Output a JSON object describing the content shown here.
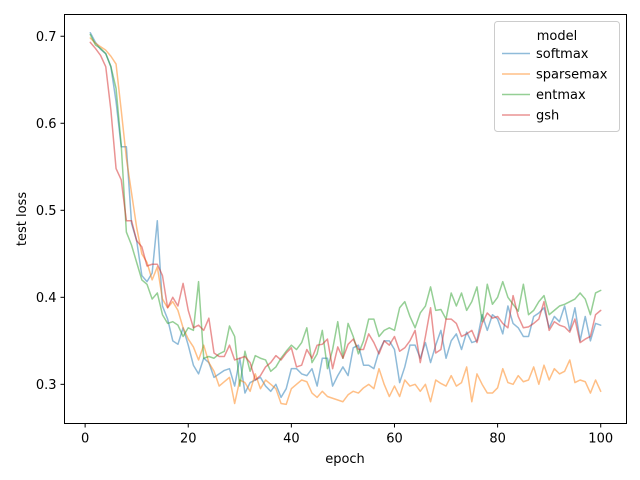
{
  "chart_data": {
    "type": "line",
    "xlabel": "epoch",
    "ylabel": "test loss",
    "xlim": [
      -4,
      105
    ],
    "ylim": [
      0.255,
      0.725
    ],
    "xticks": [
      0,
      20,
      40,
      60,
      80,
      100
    ],
    "yticks": [
      0.3,
      0.4,
      0.5,
      0.6,
      0.7
    ],
    "x_tick_labels": [
      "0",
      "20",
      "40",
      "60",
      "80",
      "100"
    ],
    "y_tick_labels": [
      "0.3",
      "0.4",
      "0.5",
      "0.6",
      "0.7"
    ],
    "grid": false,
    "legend": {
      "title": "model",
      "placement": "top-right"
    },
    "series": [
      {
        "name": "softmax",
        "color": "#1f77b4",
        "x": [
          1,
          2,
          3,
          4,
          5,
          6,
          7,
          8,
          9,
          10,
          11,
          12,
          13,
          14,
          15,
          16,
          17,
          18,
          19,
          20,
          21,
          22,
          23,
          24,
          25,
          26,
          27,
          28,
          29,
          30,
          31,
          32,
          33,
          34,
          35,
          36,
          37,
          38,
          39,
          40,
          41,
          42,
          43,
          44,
          45,
          46,
          47,
          48,
          49,
          50,
          51,
          52,
          53,
          54,
          55,
          56,
          57,
          58,
          59,
          60,
          61,
          62,
          63,
          64,
          65,
          66,
          67,
          68,
          69,
          70,
          71,
          72,
          73,
          74,
          75,
          76,
          77,
          78,
          79,
          80,
          81,
          82,
          83,
          84,
          85,
          86,
          87,
          88,
          89,
          90,
          91,
          92,
          93,
          94,
          95,
          96,
          97,
          98,
          99,
          100
        ],
        "values": [
          0.704,
          0.693,
          0.685,
          0.68,
          0.665,
          0.625,
          0.573,
          0.573,
          0.485,
          0.465,
          0.425,
          0.418,
          0.428,
          0.488,
          0.39,
          0.375,
          0.35,
          0.346,
          0.365,
          0.345,
          0.322,
          0.312,
          0.33,
          0.325,
          0.308,
          0.312,
          0.316,
          0.318,
          0.298,
          0.33,
          0.29,
          0.302,
          0.305,
          0.308,
          0.298,
          0.292,
          0.3,
          0.285,
          0.295,
          0.318,
          0.318,
          0.312,
          0.31,
          0.318,
          0.298,
          0.33,
          0.33,
          0.298,
          0.31,
          0.32,
          0.31,
          0.342,
          0.345,
          0.322,
          0.322,
          0.318,
          0.338,
          0.35,
          0.35,
          0.34,
          0.302,
          0.32,
          0.345,
          0.345,
          0.33,
          0.348,
          0.325,
          0.345,
          0.362,
          0.33,
          0.35,
          0.358,
          0.34,
          0.36,
          0.348,
          0.35,
          0.38,
          0.362,
          0.38,
          0.375,
          0.358,
          0.39,
          0.37,
          0.365,
          0.355,
          0.355,
          0.378,
          0.382,
          0.388,
          0.365,
          0.378,
          0.372,
          0.39,
          0.362,
          0.388,
          0.35,
          0.378,
          0.35,
          0.37,
          0.368
        ]
      },
      {
        "name": "sparsemax",
        "color": "#ff7f0e",
        "x": [
          1,
          2,
          3,
          4,
          5,
          6,
          7,
          8,
          9,
          10,
          11,
          12,
          13,
          14,
          15,
          16,
          17,
          18,
          19,
          20,
          21,
          22,
          23,
          24,
          25,
          26,
          27,
          28,
          29,
          30,
          31,
          32,
          33,
          34,
          35,
          36,
          37,
          38,
          39,
          40,
          41,
          42,
          43,
          44,
          45,
          46,
          47,
          48,
          49,
          50,
          51,
          52,
          53,
          54,
          55,
          56,
          57,
          58,
          59,
          60,
          61,
          62,
          63,
          64,
          65,
          66,
          67,
          68,
          69,
          70,
          71,
          72,
          73,
          74,
          75,
          76,
          77,
          78,
          79,
          80,
          81,
          82,
          83,
          84,
          85,
          86,
          87,
          88,
          89,
          90,
          91,
          92,
          93,
          94,
          95,
          96,
          97,
          98,
          99,
          100
        ],
        "values": [
          0.698,
          0.692,
          0.688,
          0.684,
          0.677,
          0.668,
          0.615,
          0.56,
          0.52,
          0.48,
          0.45,
          0.44,
          0.42,
          0.435,
          0.398,
          0.388,
          0.395,
          0.385,
          0.365,
          0.352,
          0.343,
          0.328,
          0.345,
          0.325,
          0.315,
          0.298,
          0.303,
          0.308,
          0.278,
          0.305,
          0.302,
          0.292,
          0.312,
          0.295,
          0.305,
          0.3,
          0.295,
          0.278,
          0.277,
          0.295,
          0.3,
          0.305,
          0.303,
          0.29,
          0.285,
          0.292,
          0.286,
          0.284,
          0.282,
          0.28,
          0.288,
          0.292,
          0.29,
          0.296,
          0.3,
          0.295,
          0.318,
          0.3,
          0.286,
          0.298,
          0.286,
          0.305,
          0.298,
          0.3,
          0.292,
          0.3,
          0.28,
          0.305,
          0.301,
          0.298,
          0.31,
          0.298,
          0.302,
          0.32,
          0.28,
          0.312,
          0.3,
          0.29,
          0.29,
          0.296,
          0.318,
          0.302,
          0.3,
          0.31,
          0.303,
          0.305,
          0.32,
          0.3,
          0.322,
          0.305,
          0.318,
          0.312,
          0.315,
          0.328,
          0.302,
          0.305,
          0.303,
          0.29,
          0.305,
          0.292
        ]
      },
      {
        "name": "entmax",
        "color": "#2ca02c",
        "x": [
          1,
          2,
          3,
          4,
          5,
          6,
          7,
          8,
          9,
          10,
          11,
          12,
          13,
          14,
          15,
          16,
          17,
          18,
          19,
          20,
          21,
          22,
          23,
          24,
          25,
          26,
          27,
          28,
          29,
          30,
          31,
          32,
          33,
          34,
          35,
          36,
          37,
          38,
          39,
          40,
          41,
          42,
          43,
          44,
          45,
          46,
          47,
          48,
          49,
          50,
          51,
          52,
          53,
          54,
          55,
          56,
          57,
          58,
          59,
          60,
          61,
          62,
          63,
          64,
          65,
          66,
          67,
          68,
          69,
          70,
          71,
          72,
          73,
          74,
          75,
          76,
          77,
          78,
          79,
          80,
          81,
          82,
          83,
          84,
          85,
          86,
          87,
          88,
          89,
          90,
          91,
          92,
          93,
          94,
          95,
          96,
          97,
          98,
          99,
          100
        ],
        "values": [
          0.702,
          0.69,
          0.686,
          0.68,
          0.665,
          0.64,
          0.575,
          0.475,
          0.46,
          0.44,
          0.42,
          0.415,
          0.398,
          0.405,
          0.38,
          0.37,
          0.372,
          0.368,
          0.355,
          0.365,
          0.362,
          0.418,
          0.33,
          0.332,
          0.33,
          0.335,
          0.338,
          0.367,
          0.355,
          0.298,
          0.338,
          0.315,
          0.333,
          0.33,
          0.328,
          0.315,
          0.32,
          0.33,
          0.338,
          0.345,
          0.34,
          0.348,
          0.365,
          0.325,
          0.335,
          0.362,
          0.318,
          0.34,
          0.372,
          0.33,
          0.37,
          0.355,
          0.335,
          0.35,
          0.375,
          0.375,
          0.355,
          0.362,
          0.365,
          0.362,
          0.388,
          0.395,
          0.378,
          0.365,
          0.382,
          0.39,
          0.412,
          0.385,
          0.386,
          0.375,
          0.405,
          0.39,
          0.405,
          0.385,
          0.395,
          0.412,
          0.372,
          0.415,
          0.392,
          0.4,
          0.418,
          0.4,
          0.392,
          0.384,
          0.415,
          0.38,
          0.385,
          0.395,
          0.402,
          0.38,
          0.385,
          0.39,
          0.392,
          0.395,
          0.398,
          0.405,
          0.398,
          0.38,
          0.405,
          0.408
        ]
      },
      {
        "name": "gsh",
        "color": "#d62728",
        "x": [
          1,
          2,
          3,
          4,
          5,
          6,
          7,
          8,
          9,
          10,
          11,
          12,
          13,
          14,
          15,
          16,
          17,
          18,
          19,
          20,
          21,
          22,
          23,
          24,
          25,
          26,
          27,
          28,
          29,
          30,
          31,
          32,
          33,
          34,
          35,
          36,
          37,
          38,
          39,
          40,
          41,
          42,
          43,
          44,
          45,
          46,
          47,
          48,
          49,
          50,
          51,
          52,
          53,
          54,
          55,
          56,
          57,
          58,
          59,
          60,
          61,
          62,
          63,
          64,
          65,
          66,
          67,
          68,
          69,
          70,
          71,
          72,
          73,
          74,
          75,
          76,
          77,
          78,
          79,
          80,
          81,
          82,
          83,
          84,
          85,
          86,
          87,
          88,
          89,
          90,
          91,
          92,
          93,
          94,
          95,
          96,
          97,
          98,
          99,
          100
        ],
        "values": [
          0.693,
          0.686,
          0.678,
          0.665,
          0.615,
          0.548,
          0.535,
          0.488,
          0.488,
          0.465,
          0.458,
          0.436,
          0.438,
          0.438,
          0.425,
          0.388,
          0.4,
          0.39,
          0.416,
          0.385,
          0.365,
          0.368,
          0.362,
          0.376,
          0.336,
          0.332,
          0.332,
          0.345,
          0.328,
          0.33,
          0.332,
          0.325,
          0.305,
          0.31,
          0.32,
          0.325,
          0.333,
          0.328,
          0.336,
          0.342,
          0.32,
          0.322,
          0.34,
          0.33,
          0.345,
          0.346,
          0.352,
          0.318,
          0.343,
          0.33,
          0.346,
          0.352,
          0.34,
          0.34,
          0.358,
          0.348,
          0.335,
          0.35,
          0.345,
          0.355,
          0.338,
          0.342,
          0.35,
          0.362,
          0.325,
          0.355,
          0.388,
          0.336,
          0.34,
          0.375,
          0.375,
          0.37,
          0.355,
          0.358,
          0.362,
          0.348,
          0.37,
          0.382,
          0.376,
          0.378,
          0.37,
          0.365,
          0.402,
          0.378,
          0.365,
          0.366,
          0.37,
          0.375,
          0.395,
          0.362,
          0.372,
          0.368,
          0.366,
          0.36,
          0.375,
          0.348,
          0.352,
          0.355,
          0.38,
          0.385
        ]
      }
    ]
  }
}
